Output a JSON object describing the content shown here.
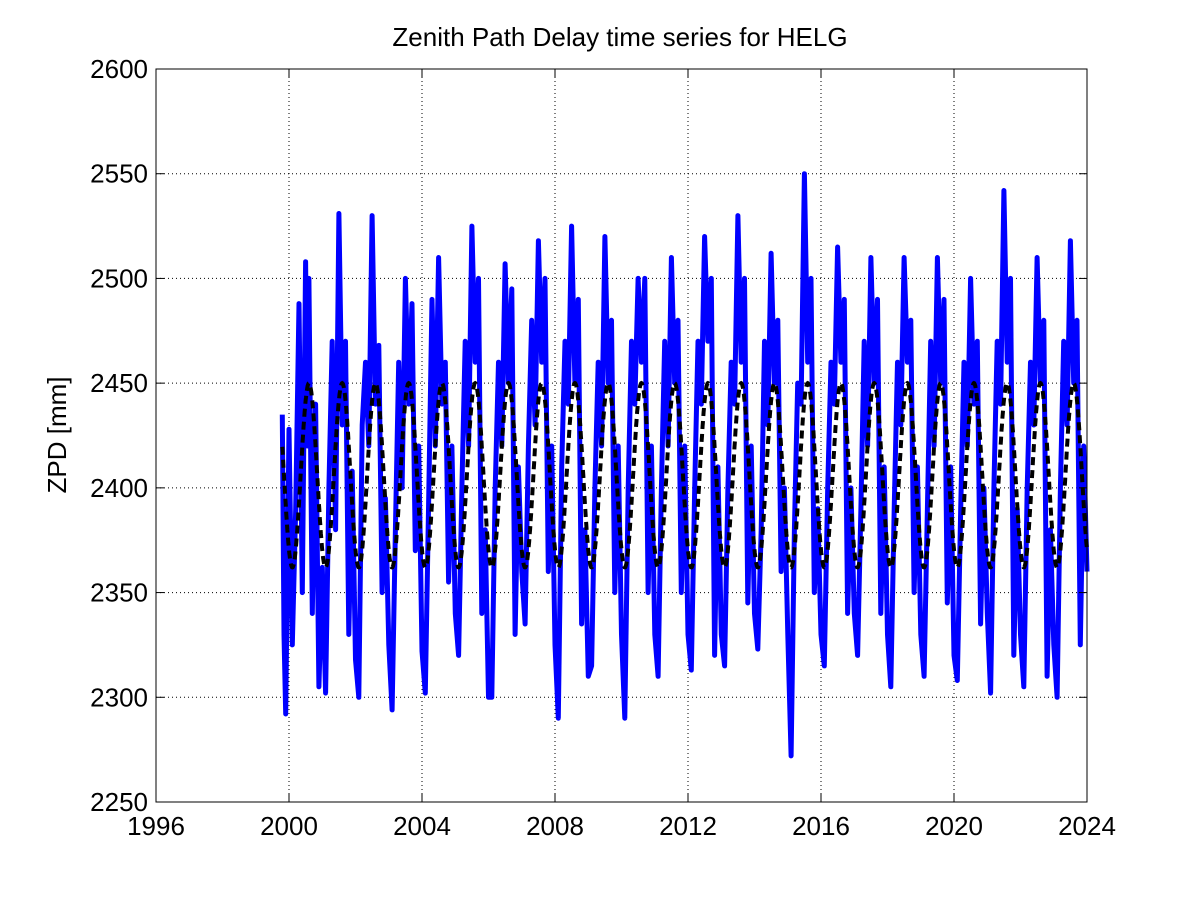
{
  "chart_data": {
    "type": "line",
    "title": "Zenith Path Delay time series for HELG",
    "xlabel": "",
    "ylabel": "ZPD [mm]",
    "xlim": [
      1996,
      2024
    ],
    "ylim": [
      2250,
      2600
    ],
    "xticks": [
      1996,
      2000,
      2004,
      2008,
      2012,
      2016,
      2020,
      2024
    ],
    "yticks": [
      2250,
      2300,
      2350,
      2400,
      2450,
      2500,
      2550,
      2600
    ],
    "grid": true,
    "legend": "none",
    "series": [
      {
        "style": "solid",
        "color": "#0000ff",
        "x": [
          1999.8,
          1999.85,
          1999.9,
          2000.0,
          2000.1,
          2000.2,
          2000.3,
          2000.4,
          2000.5,
          2000.55,
          2000.6,
          2000.7,
          2000.8,
          2000.9,
          2001.0,
          2001.1,
          2001.2,
          2001.3,
          2001.4,
          2001.5,
          2001.6,
          2001.7,
          2001.8,
          2001.9,
          2002.0,
          2002.1,
          2002.2,
          2002.3,
          2002.4,
          2002.5,
          2002.6,
          2002.7,
          2002.8,
          2002.9,
          2003.0,
          2003.1,
          2003.2,
          2003.3,
          2003.4,
          2003.5,
          2003.6,
          2003.7,
          2003.8,
          2003.9,
          2004.0,
          2004.1,
          2004.2,
          2004.3,
          2004.4,
          2004.5,
          2004.6,
          2004.7,
          2004.8,
          2004.9,
          2005.0,
          2005.1,
          2005.2,
          2005.3,
          2005.4,
          2005.5,
          2005.6,
          2005.7,
          2005.8,
          2005.9,
          2006.0,
          2006.1,
          2006.2,
          2006.3,
          2006.4,
          2006.5,
          2006.6,
          2006.7,
          2006.8,
          2006.9,
          2007.0,
          2007.1,
          2007.2,
          2007.3,
          2007.4,
          2007.5,
          2007.6,
          2007.7,
          2007.8,
          2007.9,
          2008.0,
          2008.1,
          2008.2,
          2008.3,
          2008.4,
          2008.5,
          2008.6,
          2008.7,
          2008.8,
          2008.9,
          2009.0,
          2009.1,
          2009.2,
          2009.3,
          2009.4,
          2009.5,
          2009.6,
          2009.7,
          2009.8,
          2009.9,
          2010.0,
          2010.1,
          2010.2,
          2010.3,
          2010.4,
          2010.5,
          2010.6,
          2010.7,
          2010.8,
          2010.9,
          2011.0,
          2011.1,
          2011.2,
          2011.3,
          2011.4,
          2011.5,
          2011.6,
          2011.7,
          2011.8,
          2011.9,
          2012.0,
          2012.1,
          2012.2,
          2012.3,
          2012.4,
          2012.5,
          2012.6,
          2012.7,
          2012.8,
          2012.9,
          2013.0,
          2013.1,
          2013.2,
          2013.3,
          2013.4,
          2013.5,
          2013.6,
          2013.7,
          2013.8,
          2013.9,
          2014.0,
          2014.1,
          2014.2,
          2014.3,
          2014.4,
          2014.5,
          2014.6,
          2014.7,
          2014.8,
          2014.9,
          2015.0,
          2015.1,
          2015.2,
          2015.3,
          2015.4,
          2015.5,
          2015.6,
          2015.7,
          2015.8,
          2015.9,
          2016.0,
          2016.1,
          2016.2,
          2016.3,
          2016.4,
          2016.5,
          2016.6,
          2016.7,
          2016.8,
          2016.9,
          2017.0,
          2017.1,
          2017.2,
          2017.3,
          2017.4,
          2017.5,
          2017.6,
          2017.7,
          2017.8,
          2017.9,
          2018.0,
          2018.1,
          2018.2,
          2018.3,
          2018.4,
          2018.5,
          2018.6,
          2018.7,
          2018.8,
          2018.9,
          2019.0,
          2019.1,
          2019.2,
          2019.3,
          2019.4,
          2019.5,
          2019.6,
          2019.7,
          2019.8,
          2019.9,
          2020.0,
          2020.1,
          2020.2,
          2020.3,
          2020.4,
          2020.5,
          2020.6,
          2020.7,
          2020.8,
          2020.9,
          2021.0,
          2021.1,
          2021.2,
          2021.3,
          2021.4,
          2021.5,
          2021.6,
          2021.7,
          2021.8,
          2021.9,
          2022.0,
          2022.1,
          2022.2,
          2022.3,
          2022.4,
          2022.5,
          2022.6,
          2022.7,
          2022.8,
          2022.9,
          2023.0,
          2023.1,
          2023.2,
          2023.3,
          2023.4,
          2023.5,
          2023.6,
          2023.7,
          2023.8,
          2023.9,
          2024.0
        ],
        "y": [
          2435,
          2330,
          2292,
          2428,
          2325,
          2390,
          2488,
          2350,
          2508,
          2420,
          2500,
          2340,
          2440,
          2305,
          2362,
          2302,
          2400,
          2470,
          2380,
          2531,
          2430,
          2470,
          2330,
          2408,
          2318,
          2300,
          2430,
          2460,
          2420,
          2530,
          2440,
          2468,
          2350,
          2395,
          2325,
          2294,
          2380,
          2460,
          2400,
          2500,
          2440,
          2488,
          2370,
          2420,
          2322,
          2302,
          2395,
          2490,
          2420,
          2510,
          2440,
          2460,
          2355,
          2420,
          2340,
          2320,
          2400,
          2470,
          2420,
          2525,
          2460,
          2500,
          2340,
          2380,
          2300,
          2300,
          2400,
          2460,
          2420,
          2507,
          2450,
          2495,
          2330,
          2410,
          2360,
          2335,
          2420,
          2480,
          2430,
          2518,
          2460,
          2500,
          2360,
          2420,
          2325,
          2290,
          2410,
          2470,
          2440,
          2525,
          2450,
          2490,
          2335,
          2380,
          2310,
          2315,
          2400,
          2460,
          2420,
          2520,
          2450,
          2480,
          2350,
          2420,
          2330,
          2290,
          2400,
          2470,
          2440,
          2500,
          2460,
          2500,
          2350,
          2420,
          2330,
          2310,
          2400,
          2470,
          2420,
          2510,
          2450,
          2480,
          2350,
          2420,
          2330,
          2313,
          2400,
          2470,
          2440,
          2520,
          2470,
          2500,
          2320,
          2410,
          2330,
          2315,
          2400,
          2460,
          2440,
          2530,
          2460,
          2500,
          2345,
          2420,
          2340,
          2323,
          2380,
          2470,
          2430,
          2512,
          2450,
          2480,
          2360,
          2400,
          2330,
          2272,
          2380,
          2450,
          2440,
          2550,
          2460,
          2500,
          2350,
          2390,
          2330,
          2315,
          2400,
          2460,
          2440,
          2515,
          2460,
          2490,
          2340,
          2400,
          2340,
          2320,
          2390,
          2470,
          2420,
          2510,
          2450,
          2490,
          2340,
          2410,
          2330,
          2305,
          2390,
          2460,
          2430,
          2510,
          2460,
          2480,
          2350,
          2410,
          2330,
          2310,
          2390,
          2470,
          2420,
          2510,
          2450,
          2490,
          2345,
          2410,
          2320,
          2308,
          2390,
          2460,
          2420,
          2500,
          2440,
          2470,
          2335,
          2400,
          2340,
          2302,
          2400,
          2470,
          2440,
          2542,
          2460,
          2500,
          2320,
          2390,
          2330,
          2305,
          2400,
          2460,
          2430,
          2510,
          2450,
          2480,
          2310,
          2380,
          2325,
          2300,
          2400,
          2470,
          2430,
          2518,
          2450,
          2480,
          2325,
          2420,
          2360
        ]
      },
      {
        "style": "dashed",
        "color": "#000000",
        "model": "seasonal",
        "mean": 2406,
        "amplitude": 44,
        "period_years": 1,
        "peak_year_fraction": 0.6
      }
    ]
  }
}
